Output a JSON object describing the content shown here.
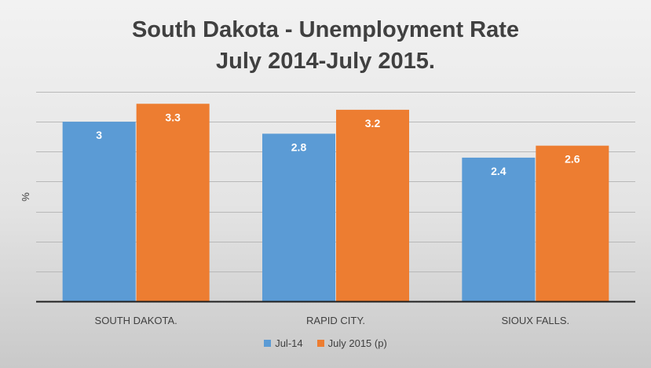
{
  "chart_data": {
    "type": "bar",
    "title": [
      "South Dakota - Unemployment Rate",
      "July 2014-July 2015."
    ],
    "xlabel": "",
    "ylabel": "%",
    "categories": [
      "SOUTH DAKOTA.",
      "RAPID CITY.",
      "SIOUX FALLS."
    ],
    "series": [
      {
        "name": "Jul-14",
        "values": [
          3,
          2.8,
          2.4
        ],
        "color": "#5b9bd5"
      },
      {
        "name": "July 2015 (p)",
        "values": [
          3.3,
          3.2,
          2.6
        ],
        "color": "#ed7d31"
      }
    ],
    "ylim": [
      0,
      3.5
    ],
    "grid": true,
    "legend_position": "bottom",
    "data_labels": true
  }
}
